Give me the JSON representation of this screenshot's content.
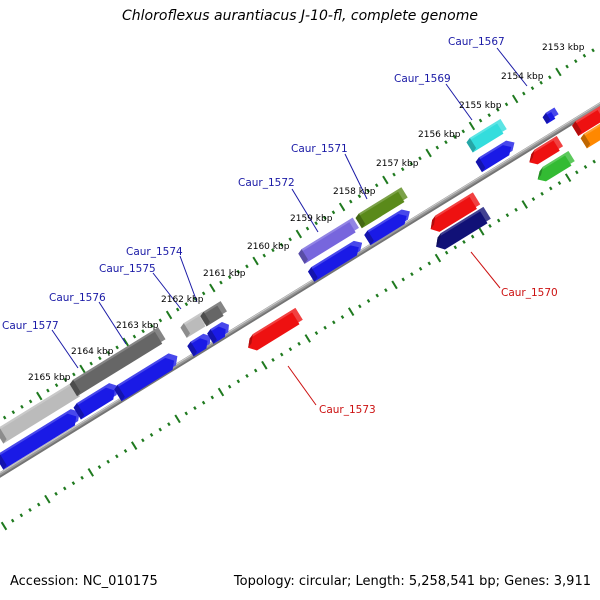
{
  "title": "Chloroflexus aurantiacus J-10-fl, complete genome",
  "footer": {
    "accession": "Accession: NC_010175",
    "topology": "Topology: circular; Length: 5,258,541 bp; Genes: 3,911"
  },
  "colors": {
    "backbone": "#9a9a9a",
    "tick": "#1f7a1f",
    "label_forward": "#1a1aa6",
    "label_reverse": "#cc1111",
    "gene_blue": "#1a1ae6",
    "gene_red": "#ee1111",
    "gene_navy": "#111177",
    "gene_cyan": "#33dddd",
    "gene_olive": "#5a8a1a",
    "gene_slate": "#7766dd",
    "gene_green": "#33bb33",
    "gene_orange": "#ff8800",
    "gene_gray": "#888888"
  },
  "position_labels": [
    "2153 kbp",
    "2154 kbp",
    "2155 kbp",
    "2156 kbp",
    "2157 kbp",
    "2158 kbp",
    "2159 kbp",
    "2160 kbp",
    "2161 kbp",
    "2162 kbp",
    "2163 kbp",
    "2164 kbp",
    "2165 kbp"
  ],
  "gene_labels": {
    "forward": [
      "Caur_1567",
      "Caur_1569",
      "Caur_1571",
      "Caur_1572",
      "Caur_1574",
      "Caur_1575",
      "Caur_1576",
      "Caur_1577"
    ],
    "reverse": [
      "Caur_1570",
      "Caur_1573"
    ]
  }
}
